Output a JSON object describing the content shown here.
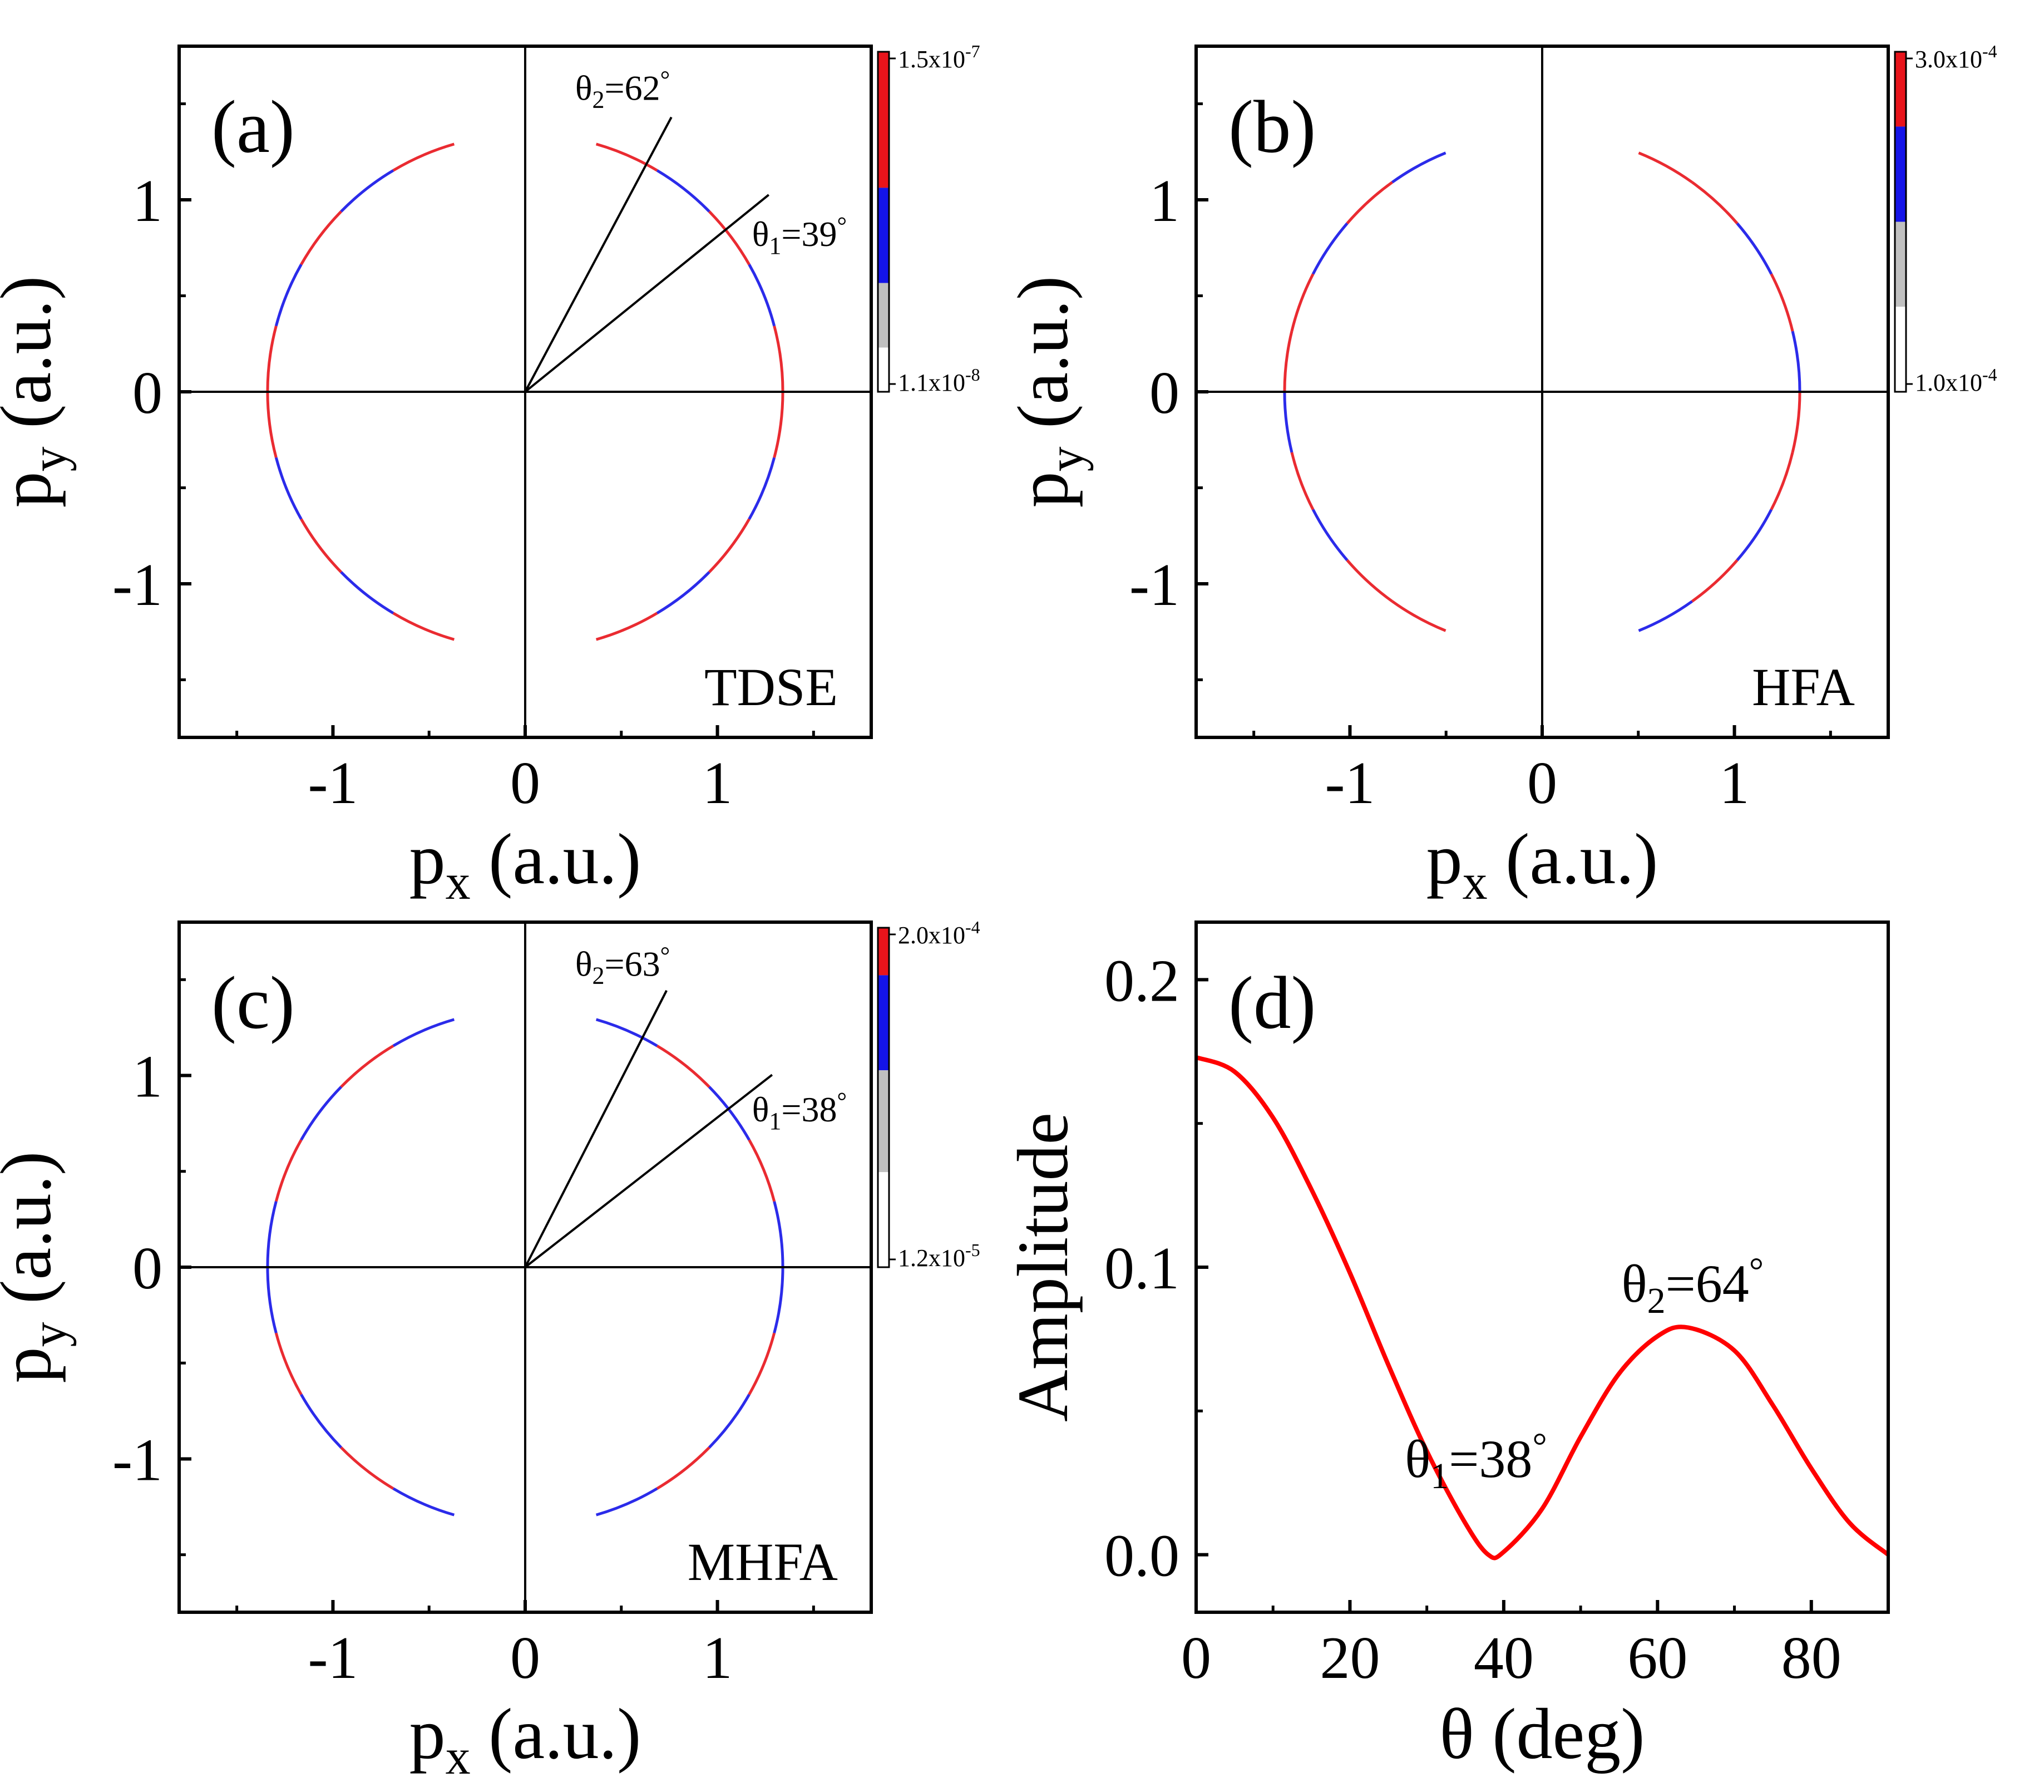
{
  "figure_title": "",
  "colors": {
    "red": "#e8141b",
    "blue": "#1414e8",
    "gray": "#c0c0c0",
    "white": "#ffffff",
    "line": "#000000",
    "curve": "#ff0000"
  },
  "chart_data": [
    {
      "type": "scatter",
      "panel_label": "(a)",
      "method_label": "TDSE",
      "xlabel_main": "p",
      "xlabel_sub": "x",
      "xlabel_unit": " (a.u.)",
      "ylabel_main": "p",
      "ylabel_sub": "y",
      "ylabel_unit": " (a.u.)",
      "xlim": [
        -1.8,
        1.8
      ],
      "ylim": [
        -1.8,
        1.8
      ],
      "x_ticks": [
        "-1",
        "0",
        "1"
      ],
      "y_ticks": [
        "-1",
        "0",
        "1"
      ],
      "ring_radius": 1.34,
      "angle_annotations": [
        {
          "sym": "θ",
          "sub": "2",
          "rest": "=62",
          "deg": "°",
          "angle": 62
        },
        {
          "sym": "θ",
          "sub": "1",
          "rest": "=39",
          "deg": "°",
          "angle": 39
        }
      ],
      "colorbar": {
        "max_mant": "1.5x10",
        "max_exp": "-7",
        "min_mant": "1.1x10",
        "min_exp": "-8"
      }
    },
    {
      "type": "scatter",
      "panel_label": "(b)",
      "method_label": "HFA",
      "xlabel_main": "p",
      "xlabel_sub": "x",
      "xlabel_unit": " (a.u.)",
      "ylabel_main": "p",
      "ylabel_sub": "y",
      "ylabel_unit": " (a.u.)",
      "xlim": [
        -1.8,
        1.8
      ],
      "ylim": [
        -1.8,
        1.8
      ],
      "x_ticks": [
        "-1",
        "0",
        "1"
      ],
      "y_ticks": [
        "-1",
        "0",
        "1"
      ],
      "ring_radius": 1.34,
      "angle_annotations": [],
      "colorbar": {
        "max_mant": "3.0x10",
        "max_exp": "-4",
        "min_mant": "1.0x10",
        "min_exp": "-4"
      }
    },
    {
      "type": "scatter",
      "panel_label": "(c)",
      "method_label": "MHFA",
      "xlabel_main": "p",
      "xlabel_sub": "x",
      "xlabel_unit": " (a.u.)",
      "ylabel_main": "p",
      "ylabel_sub": "y",
      "ylabel_unit": " (a.u.)",
      "xlim": [
        -1.8,
        1.8
      ],
      "ylim": [
        -1.8,
        1.8
      ],
      "x_ticks": [
        "-1",
        "0",
        "1"
      ],
      "y_ticks": [
        "-1",
        "0",
        "1"
      ],
      "ring_radius": 1.34,
      "angle_annotations": [
        {
          "sym": "θ",
          "sub": "2",
          "rest": "=63",
          "deg": "°",
          "angle": 63
        },
        {
          "sym": "θ",
          "sub": "1",
          "rest": "=38",
          "deg": "°",
          "angle": 38
        }
      ],
      "colorbar": {
        "max_mant": "2.0x10",
        "max_exp": "-4",
        "min_mant": "1.2x10",
        "min_exp": "-5"
      }
    },
    {
      "type": "line",
      "panel_label": "(d)",
      "xlabel": "θ (deg)",
      "ylabel": "Amplitude",
      "xlim": [
        0,
        90
      ],
      "ylim": [
        -0.02,
        0.22
      ],
      "x_ticks": [
        "0",
        "20",
        "40",
        "60",
        "80"
      ],
      "y_ticks": [
        "0.0",
        "0.1",
        "0.2"
      ],
      "series": [
        {
          "name": "Amplitude",
          "x": [
            0,
            5,
            10,
            15,
            20,
            25,
            30,
            35,
            38,
            40,
            45,
            50,
            55,
            60,
            64,
            70,
            75,
            80,
            85,
            90
          ],
          "y": [
            0.173,
            0.168,
            0.152,
            0.127,
            0.098,
            0.066,
            0.036,
            0.011,
            0.0,
            0.001,
            0.016,
            0.041,
            0.063,
            0.076,
            0.079,
            0.071,
            0.052,
            0.03,
            0.011,
            0.0
          ]
        }
      ],
      "annotations": [
        {
          "sym": "θ",
          "sub": "1",
          "rest": "=38",
          "deg": "°",
          "x": 38,
          "y": 0.0
        },
        {
          "sym": "θ",
          "sub": "2",
          "rest": "=64",
          "deg": "°",
          "x": 64,
          "y": 0.079
        }
      ]
    }
  ]
}
